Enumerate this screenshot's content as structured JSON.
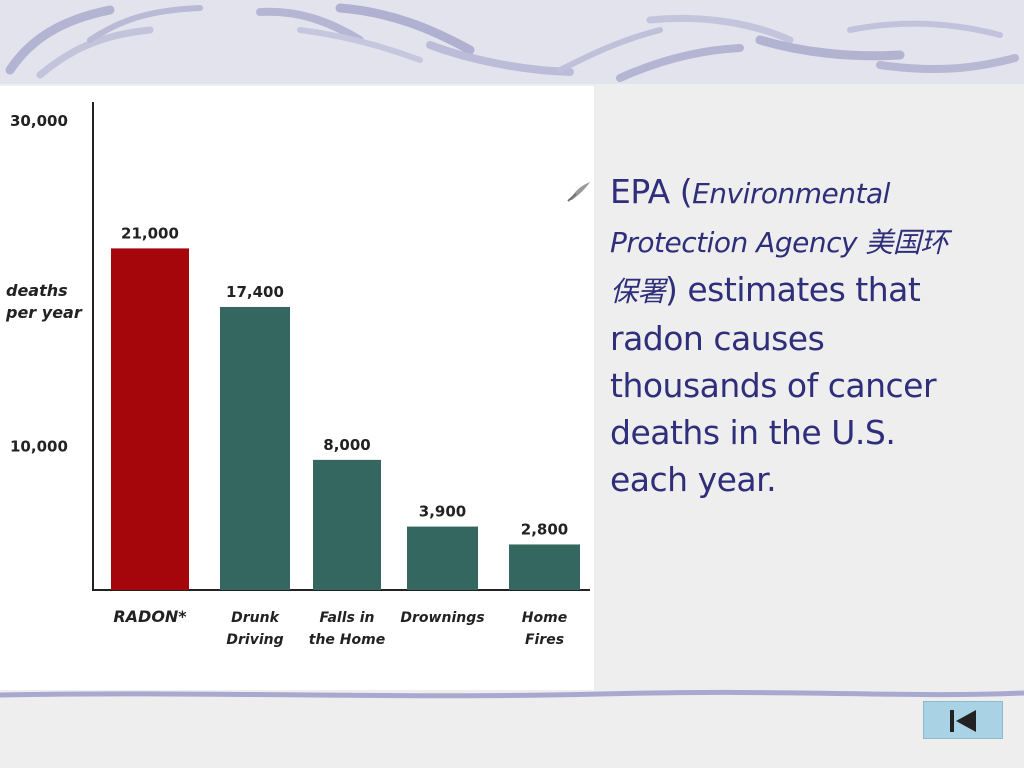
{
  "slide": {
    "bullet": {
      "lead": "EPA (",
      "italic": "Environmental Protection Agency 美国环保署",
      "close": ")",
      "rest": " estimates that radon causes thousands of cancer deaths in the U.S. each year."
    },
    "nav_button_icon": "first-slide-icon",
    "colors": {
      "text": "#2e2e7a",
      "radon_bar": "#a4060c",
      "other_bar": "#33675f",
      "nav_button": "#a9d3e4"
    }
  },
  "chart_data": {
    "type": "bar",
    "categories": [
      "RADON*",
      "Drunk Driving",
      "Falls in the Home",
      "Drownings",
      "Home Fires"
    ],
    "category_lines": [
      [
        "RADON*"
      ],
      [
        "Drunk",
        "Driving"
      ],
      [
        "Falls in",
        "the Home"
      ],
      [
        "Drownings"
      ],
      [
        "Home",
        "Fires"
      ]
    ],
    "values": [
      21000,
      17400,
      8000,
      3900,
      2800
    ],
    "value_labels": [
      "21,000",
      "17,400",
      "8,000",
      "3,900",
      "2,800"
    ],
    "yticks": [
      {
        "value": 30000,
        "label": "30,000"
      },
      {
        "value": 10000,
        "label": "10,000"
      }
    ],
    "ylabel_lines": [
      "deaths",
      "per year"
    ],
    "ylim": [
      0,
      30000
    ],
    "title": "",
    "xlabel": "",
    "grid": false,
    "legend": "none"
  }
}
